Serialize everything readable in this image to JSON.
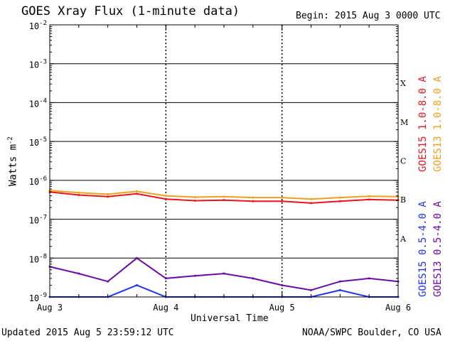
{
  "chart_data": {
    "type": "line",
    "title": "GOES Xray Flux (1-minute data)",
    "begin": "Begin:  2015 Aug 3 0000 UTC",
    "xlabel": "Universal Time",
    "ylabel": "Watts m",
    "ylabel_superscript": "-2",
    "yscale": "log",
    "ylim": [
      1e-09,
      0.01
    ],
    "y_ticks": [
      {
        "base": "10",
        "exp": "-2"
      },
      {
        "base": "10",
        "exp": "-3"
      },
      {
        "base": "10",
        "exp": "-4"
      },
      {
        "base": "10",
        "exp": "-5"
      },
      {
        "base": "10",
        "exp": "-6"
      },
      {
        "base": "10",
        "exp": "-7"
      },
      {
        "base": "10",
        "exp": "-8"
      },
      {
        "base": "10",
        "exp": "-9"
      }
    ],
    "x_ticks": [
      "Aug 3",
      "Aug 4",
      "Aug 5",
      "Aug 6"
    ],
    "flare_classes": [
      "X",
      "M",
      "C",
      "B",
      "A"
    ],
    "grid": true,
    "series": [
      {
        "name": "GOES15 1.0-8.0 A",
        "color": "#e8141e",
        "x": [
          "Aug 3 00:00",
          "Aug 3 06:00",
          "Aug 3 12:00",
          "Aug 3 18:00",
          "Aug 4 00:00",
          "Aug 4 06:00",
          "Aug 4 12:00",
          "Aug 4 18:00",
          "Aug 5 00:00",
          "Aug 5 06:00",
          "Aug 5 12:00",
          "Aug 5 18:00",
          "Aug 6 00:00"
        ],
        "values": [
          5e-07,
          4.2e-07,
          3.8e-07,
          4.5e-07,
          3.3e-07,
          3e-07,
          3.1e-07,
          2.9e-07,
          2.9e-07,
          2.6e-07,
          2.9e-07,
          3.2e-07,
          3.1e-07
        ]
      },
      {
        "name": "GOES13 1.0-8.0 A",
        "color": "#f0a01e",
        "x": [
          "Aug 3 00:00",
          "Aug 3 06:00",
          "Aug 3 12:00",
          "Aug 3 18:00",
          "Aug 4 00:00",
          "Aug 4 06:00",
          "Aug 4 12:00",
          "Aug 4 18:00",
          "Aug 5 00:00",
          "Aug 5 06:00",
          "Aug 5 12:00",
          "Aug 5 18:00",
          "Aug 6 00:00"
        ],
        "values": [
          5.5e-07,
          4.8e-07,
          4.4e-07,
          5.2e-07,
          4e-07,
          3.7e-07,
          3.8e-07,
          3.6e-07,
          3.6e-07,
          3.3e-07,
          3.6e-07,
          3.9e-07,
          3.8e-07
        ]
      },
      {
        "name": "GOES15 0.5-4.0 A",
        "color": "#1e32f0",
        "x": [
          "Aug 3 00:00",
          "Aug 3 06:00",
          "Aug 3 12:00",
          "Aug 3 18:00",
          "Aug 4 00:00",
          "Aug 4 06:00",
          "Aug 4 12:00",
          "Aug 4 18:00",
          "Aug 5 00:00",
          "Aug 5 06:00",
          "Aug 5 12:00",
          "Aug 5 18:00",
          "Aug 6 00:00"
        ],
        "values": [
          1e-09,
          1e-09,
          1e-09,
          2e-09,
          1e-09,
          1e-09,
          1e-09,
          1e-09,
          1e-09,
          1e-09,
          1.5e-09,
          1e-09,
          1e-09
        ]
      },
      {
        "name": "GOES13 0.5-4.0 A",
        "color": "#6a0aa8",
        "x": [
          "Aug 3 00:00",
          "Aug 3 06:00",
          "Aug 3 12:00",
          "Aug 3 18:00",
          "Aug 4 00:00",
          "Aug 4 06:00",
          "Aug 4 12:00",
          "Aug 4 18:00",
          "Aug 5 00:00",
          "Aug 5 06:00",
          "Aug 5 12:00",
          "Aug 5 18:00",
          "Aug 6 00:00"
        ],
        "values": [
          6e-09,
          4e-09,
          2.5e-09,
          1e-08,
          3e-09,
          3.5e-09,
          4e-09,
          3e-09,
          2e-09,
          1.5e-09,
          2.5e-09,
          3e-09,
          2.5e-09
        ]
      }
    ]
  },
  "footer": {
    "updated": "Updated 2015 Aug  5 23:59:12 UTC",
    "credit": "NOAA/SWPC Boulder, CO USA"
  }
}
